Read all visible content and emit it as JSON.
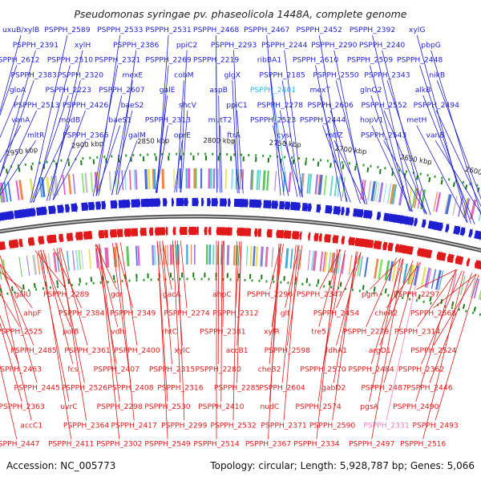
{
  "header": {
    "title": "Pseudomonas syringae pv. phaseolicola 1448A, complete genome"
  },
  "footer": {
    "accession": "Accession: NC_005773",
    "summary": "Topology: circular; Length: 5,928,787 bp; Genes: 5,066"
  },
  "colors": {
    "forward_strand": "#1f1fd2",
    "reverse_strand": "#e01a1a",
    "highlight_forward": "#33b5e5",
    "highlight_reverse": "#f07cc0",
    "backbone": "#777777",
    "tick": "#1a7a1a"
  },
  "scale_ticks": [
    "2550 kbp",
    "2600 kbp",
    "2650 kbp",
    "2700 kbp",
    "2750 kbp",
    "2800 kbp",
    "2850 kbp",
    "2900 kbp",
    "2950 kbp",
    "3000 kbp"
  ],
  "forward_labels": [
    "uxuB/xylB",
    "PSPPH_2589",
    "PSPPH_2533",
    "PSPPH_2531",
    "PSPPH_2468",
    "PSPPH_2467",
    "PSPPH_2452",
    "PSPPH_2392",
    "xylG",
    "PSPPH_2391",
    "xylH",
    "PSPPH_2386",
    "ppiC2",
    "PSPPH_2293",
    "PSPPH_2244",
    "PSPPH_2290",
    "PSPPH_2240",
    "pbpG",
    "PSPPH_2612",
    "PSPPH_2510",
    "PSPPH_2321",
    "PSPPH_2269",
    "PSPPH_2219",
    "ribBA1",
    "PSPPH_2610",
    "PSPPH_2509",
    "PSPPH_2448",
    "PSPPH_2383",
    "PSPPH_2320",
    "mexE",
    "cobM",
    "glgX",
    "PSPPH_2185",
    "PSPPH_2550",
    "PSPPH_2343",
    "nikB",
    "gloA",
    "PSPPH_2223",
    "PSPPH_2607",
    "galE",
    "aspB",
    "PSPPH_2401",
    "mexT",
    "glnQ2",
    "alkB",
    "PSPPH_2513",
    "PSPPH_2426",
    "baeS2",
    "shcV",
    "ppiC1",
    "PSPPH_2278",
    "PSPPH_2606",
    "PSPPH_2552",
    "PSPPH_2494",
    "vanA",
    "modB",
    "baeS1",
    "PSPPH_2313",
    "mutT2",
    "PSPPH_2523",
    "PSPPH_2444",
    "hopV1",
    "metH",
    "mltR",
    "PSPPH_2366",
    "galM",
    "oprE",
    "ftrA",
    "cysI",
    "mtlZ",
    "PSPPH_2543",
    "vanB"
  ],
  "reverse_labels": [
    "galU",
    "PSPPH_2289",
    "gor",
    "gacA",
    "ahpC",
    "PSPPH_2296",
    "PSPPH_2347",
    "pgm",
    "PSPPH_2297",
    "ahpF",
    "PSPPH_2384",
    "PSPPH_2349",
    "PSPPH_2274",
    "PSPPH_2312",
    "glf",
    "PSPPH_2454",
    "cheR2",
    "PSPPH_2568",
    "PSPPH_2525",
    "polB",
    "vdh",
    "rhtC",
    "PSPPH_2381",
    "xylR",
    "tre5",
    "PSPPH_2279",
    "PSPPH_2314",
    "PSPPH_2485",
    "PSPPH_2361",
    "PSPPH_2400",
    "xylC",
    "accB1",
    "PSPPH_2598",
    "fdhA1",
    "argD1",
    "PSPPH_2524",
    "PSPPH_2463",
    "fcs",
    "PSPPH_2407",
    "PSPPH_2315",
    "PSPPH_2280",
    "cheB2",
    "PSPPH_2570",
    "PSPPH_2484",
    "PSPPH_2362",
    "PSPPH_2445",
    "PSPPH_2526",
    "PSPPH_2408",
    "PSPPH_2316",
    "PSPPH_2285",
    "PSPPH_2604",
    "gabD2",
    "PSPPH_2487",
    "PSPPH_2446",
    "PSPPH_2363",
    "uvrC",
    "PSPPH_2298",
    "PSPPH_2530",
    "PSPPH_2410",
    "nudC",
    "PSPPH_2574",
    "pgsA",
    "PSPPH_2490",
    "accC1",
    "PSPPH_2364",
    "PSPPH_2417",
    "PSPPH_2299",
    "PSPPH_2532",
    "PSPPH_2371",
    "PSPPH_2590",
    "PSPPH_2331",
    "PSPPH_2493",
    "PSPPH_2447",
    "PSPPH_2411",
    "PSPPH_2302",
    "PSPPH_2549",
    "PSPPH_2514",
    "PSPPH_2367",
    "PSPPH_2334",
    "PSPPH_2497",
    "PSPPH_2516"
  ]
}
